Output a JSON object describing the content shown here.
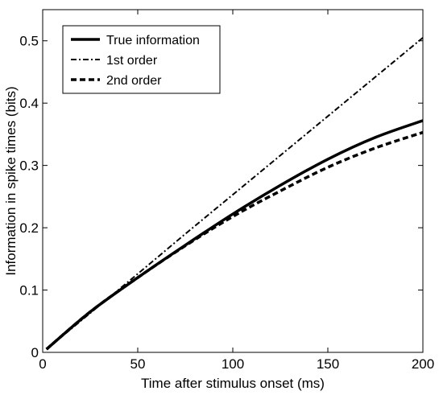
{
  "chart_data": {
    "type": "line",
    "xlabel": "Time after stimulus onset (ms)",
    "ylabel": "Information in spike times (bits)",
    "xlim": [
      0,
      200
    ],
    "ylim": [
      0,
      0.55
    ],
    "xticks": [
      0,
      50,
      100,
      150,
      200
    ],
    "xtick_labels": [
      "0",
      "50",
      "100",
      "150",
      "200"
    ],
    "yticks": [
      0,
      0.1,
      0.2,
      0.3,
      0.4,
      0.5
    ],
    "ytick_labels": [
      "0",
      "0.1",
      "0.2",
      "0.3",
      "0.4",
      "0.5"
    ],
    "grid": false,
    "legend_position": "top-left",
    "series": [
      {
        "name": "True information",
        "style": "solid",
        "x": [
          2,
          25,
          50,
          75,
          100,
          125,
          150,
          175,
          200
        ],
        "y": [
          0.005,
          0.065,
          0.12,
          0.172,
          0.222,
          0.268,
          0.31,
          0.345,
          0.372
        ]
      },
      {
        "name": "1st order",
        "style": "dashdot",
        "x": [
          2,
          25,
          50,
          75,
          100,
          125,
          150,
          175,
          200
        ],
        "y": [
          0.005,
          0.063,
          0.126,
          0.19,
          0.253,
          0.316,
          0.379,
          0.442,
          0.505
        ]
      },
      {
        "name": "2nd order",
        "style": "dashed",
        "x": [
          2,
          25,
          50,
          75,
          100,
          125,
          150,
          175,
          200
        ],
        "y": [
          0.005,
          0.065,
          0.12,
          0.171,
          0.218,
          0.259,
          0.297,
          0.328,
          0.353
        ]
      }
    ]
  }
}
